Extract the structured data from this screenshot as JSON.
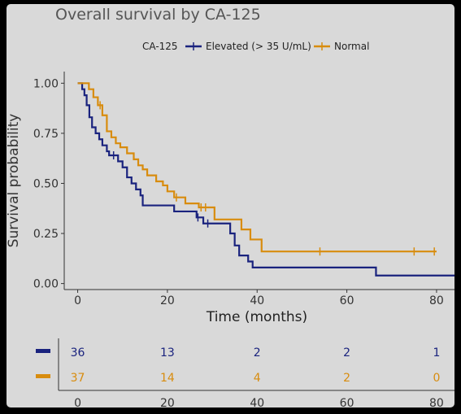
{
  "chart_data": {
    "type": "line",
    "title": "Overall survival by CA-125",
    "xlabel": "Time (months)",
    "ylabel": "Survival probability",
    "xlim": [
      -3,
      84
    ],
    "ylim": [
      -0.03,
      1.05
    ],
    "x_ticks": [
      0,
      20,
      40,
      60,
      80
    ],
    "y_ticks": [
      0.0,
      0.25,
      0.5,
      0.75,
      1.0
    ],
    "y_tick_labels": [
      "0.00",
      "0.25",
      "0.50",
      "0.75",
      "1.00"
    ],
    "legend": {
      "title": "CA-125",
      "position": "top",
      "entries": [
        "Elevated (> 35 U/mL)",
        "Normal"
      ]
    },
    "series": [
      {
        "name": "Elevated (> 35 U/mL)",
        "color": "#1a237e",
        "points": [
          [
            0,
            1.0
          ],
          [
            1,
            0.97
          ],
          [
            1.5,
            0.94
          ],
          [
            2,
            0.89
          ],
          [
            2.6,
            0.83
          ],
          [
            3.2,
            0.78
          ],
          [
            4,
            0.75
          ],
          [
            4.8,
            0.72
          ],
          [
            5.5,
            0.69
          ],
          [
            6.5,
            0.66
          ],
          [
            7,
            0.64
          ],
          [
            8,
            0.64
          ],
          [
            9,
            0.61
          ],
          [
            10,
            0.58
          ],
          [
            11,
            0.53
          ],
          [
            12,
            0.5
          ],
          [
            13,
            0.47
          ],
          [
            14,
            0.44
          ],
          [
            14.5,
            0.39
          ],
          [
            21,
            0.39
          ],
          [
            21.5,
            0.36
          ],
          [
            26,
            0.36
          ],
          [
            26.5,
            0.33
          ],
          [
            28,
            0.3
          ],
          [
            33,
            0.3
          ],
          [
            34,
            0.25
          ],
          [
            35,
            0.19
          ],
          [
            36,
            0.14
          ],
          [
            38,
            0.11
          ],
          [
            39,
            0.08
          ],
          [
            66,
            0.08
          ],
          [
            66.5,
            0.04
          ],
          [
            84,
            0.04
          ]
        ],
        "censored": [
          [
            8,
            0.64
          ],
          [
            26.8,
            0.33
          ],
          [
            29,
            0.3
          ]
        ]
      },
      {
        "name": "Normal",
        "color": "#d88c0e",
        "points": [
          [
            0,
            1.0
          ],
          [
            2,
            1.0
          ],
          [
            2.5,
            0.97
          ],
          [
            3.5,
            0.93
          ],
          [
            4.5,
            0.89
          ],
          [
            5.5,
            0.84
          ],
          [
            6.5,
            0.76
          ],
          [
            7.5,
            0.73
          ],
          [
            8.5,
            0.7
          ],
          [
            9.5,
            0.68
          ],
          [
            11,
            0.65
          ],
          [
            12.5,
            0.62
          ],
          [
            13.5,
            0.59
          ],
          [
            14.5,
            0.57
          ],
          [
            15.5,
            0.54
          ],
          [
            17.5,
            0.51
          ],
          [
            19,
            0.49
          ],
          [
            20,
            0.46
          ],
          [
            21.5,
            0.43
          ],
          [
            23,
            0.43
          ],
          [
            24,
            0.4
          ],
          [
            26,
            0.4
          ],
          [
            27,
            0.38
          ],
          [
            29,
            0.38
          ],
          [
            30.5,
            0.32
          ],
          [
            36,
            0.32
          ],
          [
            36.5,
            0.27
          ],
          [
            38.5,
            0.22
          ],
          [
            41,
            0.16
          ],
          [
            80,
            0.16
          ]
        ],
        "censored": [
          [
            5,
            0.89
          ],
          [
            22,
            0.43
          ],
          [
            27.5,
            0.38
          ],
          [
            28.5,
            0.38
          ],
          [
            54,
            0.16
          ],
          [
            75,
            0.16
          ],
          [
            79.5,
            0.16
          ]
        ]
      }
    ],
    "risk_table": {
      "times": [
        0,
        20,
        40,
        60,
        80
      ],
      "time_labels": [
        "0",
        "20",
        "40",
        "60",
        "80"
      ],
      "rows": [
        {
          "color": "#1a237e",
          "counts": [
            "36",
            "13",
            "2",
            "2",
            "1"
          ]
        },
        {
          "color": "#d88c0e",
          "counts": [
            "37",
            "14",
            "4",
            "2",
            "0"
          ]
        }
      ]
    }
  }
}
